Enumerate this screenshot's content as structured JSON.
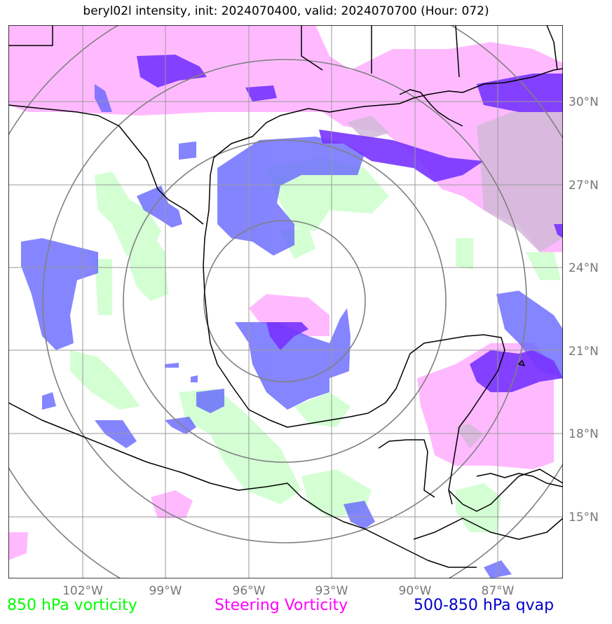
{
  "title": "beryl02l intensity, init: 2024070400, valid: 2024070700 (Hour: 072)",
  "latitude_labels": [
    "30°N",
    "27°N",
    "24°N",
    "21°N",
    "18°N",
    "15°N"
  ],
  "longitude_labels": [
    "102°W",
    "99°W",
    "96°W",
    "93°W",
    "90°W",
    "87°W"
  ],
  "legend": {
    "vort850": {
      "label": "850 hPa vorticity",
      "color": "#00ff00"
    },
    "steering": {
      "label": "Steering Vorticity",
      "color": "#ff00ff"
    },
    "qvap": {
      "label": "500-850 hPa qvap",
      "color": "#0000cc"
    }
  },
  "colors": {
    "vort850_fill": "#ccffcc",
    "steering_fill": "#ffb3ff",
    "qvap_fill": "#6666ff",
    "overlap_fill": "#7733ff",
    "grid": "#999999",
    "range_rings": "#808080",
    "coastline": "#000000"
  }
}
